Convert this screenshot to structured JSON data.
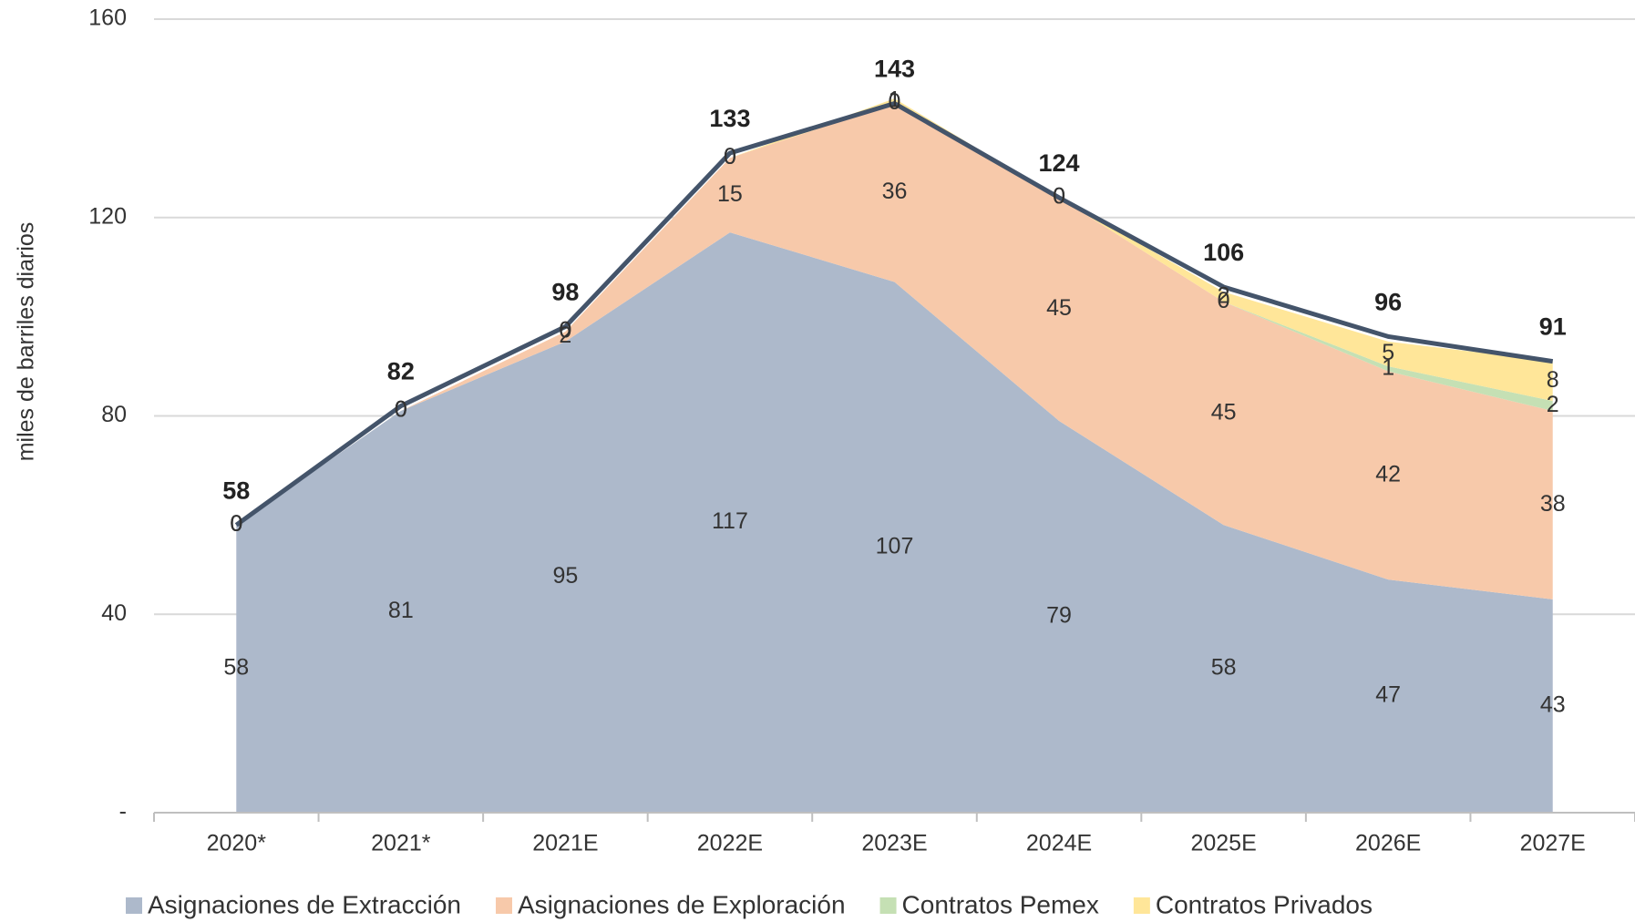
{
  "chart_data": {
    "type": "stacked_area",
    "y_axis_label": "miles de barriles diarios",
    "categories": [
      "2020*",
      "2021*",
      "2021E",
      "2022E",
      "2023E",
      "2024E",
      "2025E",
      "2026E",
      "2027E"
    ],
    "series": [
      {
        "name": "Asignaciones de Extracción",
        "color": "#adb9cb",
        "values": [
          58,
          81,
          95,
          117,
          107,
          79,
          58,
          47,
          43
        ]
      },
      {
        "name": "Asignaciones de Exploración",
        "color": "#f7c9aa",
        "values": [
          0,
          0,
          2,
          15,
          36,
          45,
          45,
          42,
          38
        ]
      },
      {
        "name": "Contratos Pemex",
        "color": "#c5e0b4",
        "values": [
          0,
          0,
          0,
          0,
          0,
          0,
          0,
          1,
          2
        ]
      },
      {
        "name": "Contratos Privados",
        "color": "#ffe699",
        "values": [
          0,
          0,
          0,
          0,
          1,
          0,
          2,
          5,
          8
        ]
      }
    ],
    "totals": {
      "color": "#44546a",
      "values": [
        58,
        82,
        98,
        133,
        143,
        124,
        106,
        96,
        91
      ]
    },
    "ylim": [
      0,
      160
    ],
    "yticks": [
      {
        "value": 0,
        "label": "-"
      },
      40,
      80,
      120,
      160
    ],
    "grid": true,
    "legend": "bottom"
  }
}
